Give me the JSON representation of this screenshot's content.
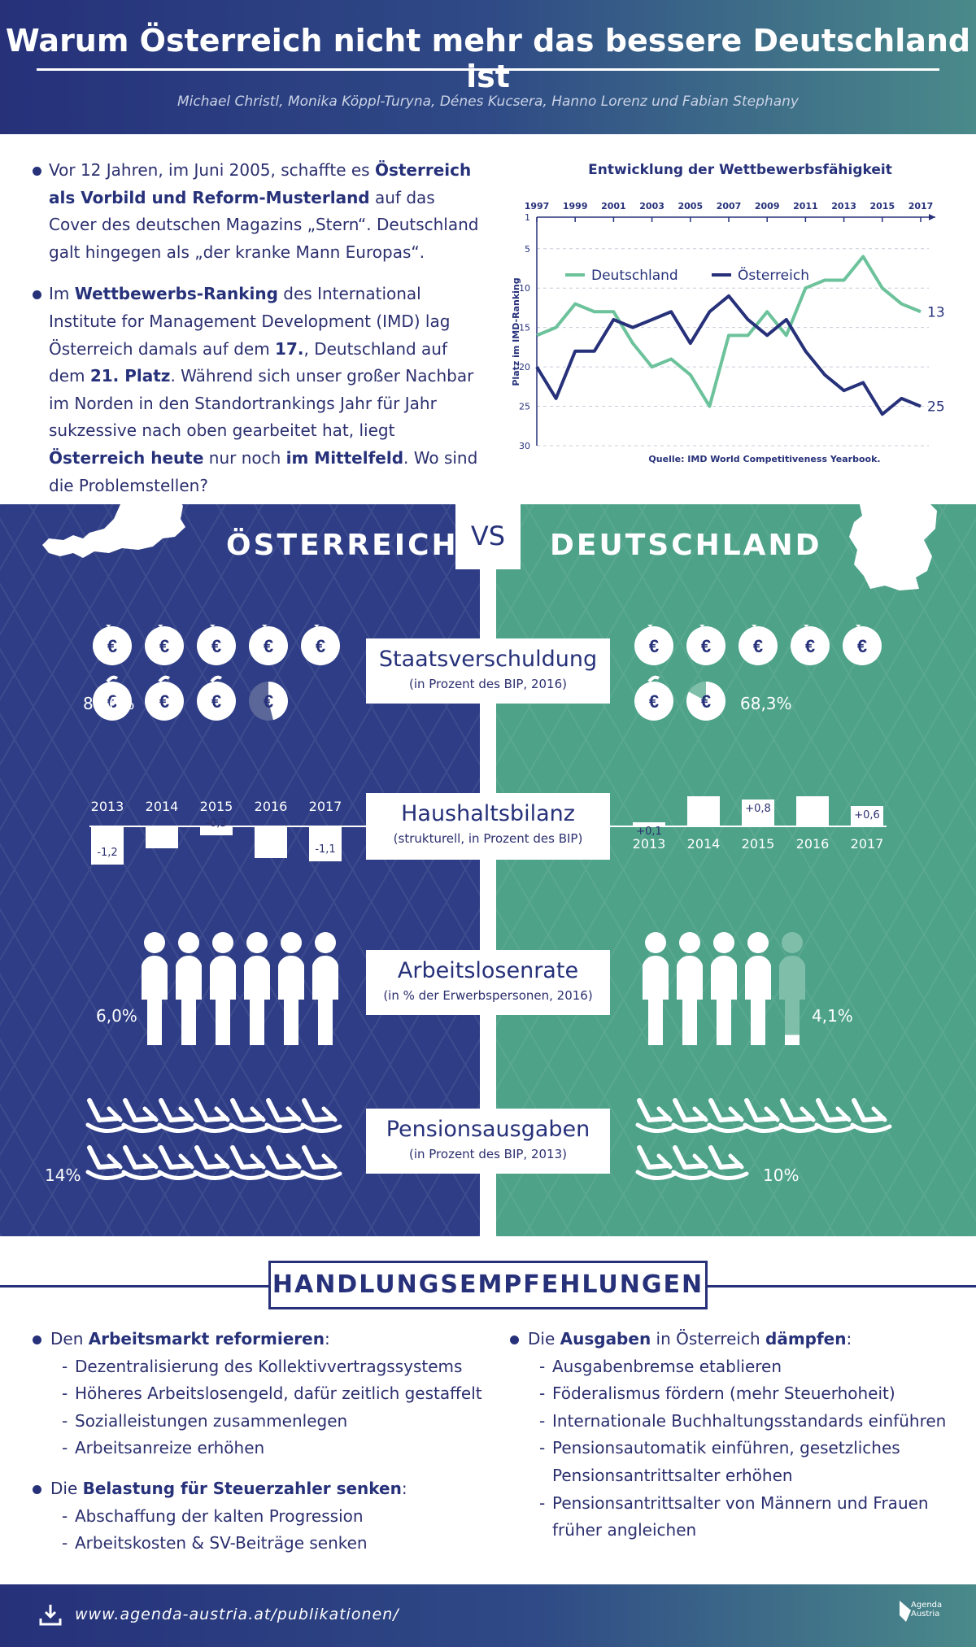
{
  "header": {
    "title": "Warum Österreich nicht mehr das bessere Deutschland ist",
    "authors": "Michael Christl, Monika Köppl-Turyna, Dénes Kucsera, Hanno Lorenz und Fabian Stephany"
  },
  "intro": {
    "p1": {
      "a": "Vor 12 Jahren, im Juni 2005, schaffte es ",
      "b": "Österreich als Vorbild und Reform-Musterland",
      "c": " auf das Cover des deutschen Magazins „Stern“. Deutschland galt hingegen als „der kranke Mann Europas“."
    },
    "p2": {
      "a": "Im ",
      "b": "Wettbewerbs-Ranking",
      "c": " des International Institute for Management Development (IMD) lag Österreich damals auf dem ",
      "d": "17.",
      "e": ", Deutschland auf dem ",
      "f": "21. Platz",
      "g": ". Während sich unser großer Nachbar im Norden in den Standortrankings Jahr für Jahr sukzessive nach oben gearbeitet hat, liegt ",
      "h": "Österreich heute",
      "i": " nur noch ",
      "j": "im Mittelfeld",
      "k": ". Wo sind die Problemstellen?"
    }
  },
  "chart_data": {
    "type": "line",
    "title": "Entwicklung der Wettbewerbsfähigkeit",
    "ylabel": "Platz im IMD-Ranking",
    "source": "Quelle: IMD World Competitiveness Yearbook.",
    "x": [
      1997,
      1998,
      1999,
      2000,
      2001,
      2002,
      2003,
      2004,
      2005,
      2006,
      2007,
      2008,
      2009,
      2010,
      2011,
      2012,
      2013,
      2014,
      2015,
      2016,
      2017
    ],
    "x_ticks": [
      "1997",
      "1999",
      "2001",
      "2003",
      "2005",
      "2007",
      "2009",
      "2011",
      "2013",
      "2015",
      "2017"
    ],
    "y_ticks": [
      "1",
      "5",
      "10",
      "15",
      "20",
      "25",
      "30"
    ],
    "ylim": [
      1,
      30
    ],
    "y_inverted": true,
    "series": [
      {
        "name": "Deutschland",
        "color": "#6cc29b",
        "values": [
          16,
          15,
          12,
          13,
          13,
          17,
          20,
          19,
          21,
          25,
          16,
          16,
          13,
          16,
          10,
          9,
          9,
          6,
          10,
          12,
          13
        ]
      },
      {
        "name": "Österreich",
        "color": "#26317a",
        "values": [
          20,
          24,
          18,
          18,
          14,
          15,
          14,
          13,
          17,
          13,
          11,
          14,
          16,
          14,
          18,
          21,
          23,
          22,
          26,
          24,
          25
        ]
      }
    ],
    "end_labels": {
      "Deutschland": "13",
      "Österreich": "25"
    },
    "legend": "top-left"
  },
  "vs": {
    "left": "ÖSTERREICH",
    "center": "VS",
    "right": "DEUTSCHLAND"
  },
  "staatsverschuldung": {
    "title": "Staatsverschuldung",
    "sub": "(in Prozent des BIP, 2016)",
    "at_value": "84,6%",
    "de_value": "68,3%",
    "at_level": 84.6,
    "de_level": 68.3
  },
  "haushaltsbilanz": {
    "title": "Haushaltsbilanz",
    "sub": "(strukturell, in Prozent des BIP)",
    "years": [
      "2013",
      "2014",
      "2015",
      "2016",
      "2017"
    ],
    "at_values": [
      -1.2,
      -0.7,
      -0.3,
      -1.0,
      -1.1
    ],
    "at_labels": [
      "-1,2",
      "",
      "-0,3",
      "",
      "-1,1"
    ],
    "de_values": [
      0.1,
      0.9,
      0.8,
      0.9,
      0.6
    ],
    "de_labels": [
      "+0,1",
      "",
      "+0,8",
      "",
      "+0,6"
    ]
  },
  "arbeitslosenrate": {
    "title": "Arbeitslosenrate",
    "sub": "(in % der Erwerbspersonen, 2016)",
    "at_value": "6,0%",
    "de_value": "4,1%",
    "at_level": 6.0,
    "de_level": 4.1
  },
  "pensionsausgaben": {
    "title": "Pensionsausgaben",
    "sub": "(in Prozent des BIP, 2013)",
    "at_value": "14%",
    "de_value": "10%",
    "at_level": 14,
    "de_level": 10
  },
  "recommendations": {
    "title": "HANDLUNGSEMPFEHLUNGEN",
    "col1": {
      "h1a": "Den ",
      "h1b": "Arbeitsmarkt reformieren",
      "h1c": ":",
      "items1": [
        "Dezentralisierung des Kollektivvertragssystems",
        "Höheres Arbeitslosengeld, dafür zeitlich gestaffelt",
        "Sozialleistungen zusammenlegen",
        "Arbeitsanreize erhöhen"
      ],
      "h2a": "Die ",
      "h2b": "Belastung für Steuerzahler senken",
      "h2c": ":",
      "items2": [
        "Abschaffung der kalten Progression",
        "Arbeitskosten & SV-Beiträge senken"
      ]
    },
    "col2": {
      "h1a": "Die ",
      "h1b": "Ausgaben",
      "h1c": " in Österreich ",
      "h1d": "dämpfen",
      "h1e": ":",
      "items1": [
        "Ausgabenbremse etablieren",
        "Föderalismus fördern (mehr Steuerhoheit)",
        "Internationale Buchhaltungsstandards einführen",
        "Pensionsautomatik einführen, gesetzliches Pensionsantrittsalter erhöhen",
        "Pensionsantrittsalter von Männern und Frauen früher angleichen"
      ]
    }
  },
  "footer": {
    "url": "www.agenda-austria.at/publikationen/",
    "brand1": "Agenda",
    "brand2": "Austria"
  },
  "colors": {
    "navy": "#26317a",
    "blue_panel": "#2e3d85",
    "green_panel": "#4da288",
    "green_line": "#6cc29b"
  }
}
